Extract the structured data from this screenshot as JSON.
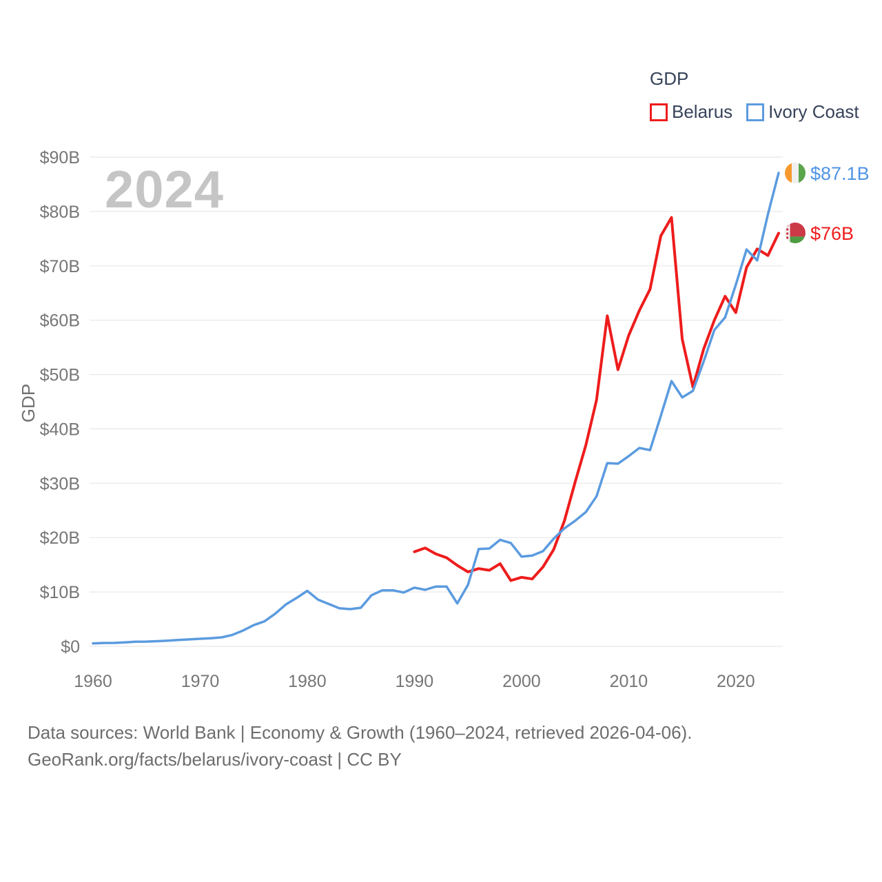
{
  "watermark": "2024",
  "legend": {
    "title": "GDP",
    "items": [
      {
        "label": "Belarus",
        "color": "#ee1c1c"
      },
      {
        "label": "Ivory Coast",
        "color": "#5b9bdf"
      }
    ]
  },
  "end_labels": [
    {
      "series": "Ivory Coast",
      "text": "$87.1B",
      "color": "#4f94e3",
      "flag_colors": [
        "#f7992d",
        "#f0f0f0",
        "#5ba54d"
      ]
    },
    {
      "series": "Belarus",
      "text": "$76B",
      "color": "#ee1c1c",
      "flag_colors": [
        "#cc3a47",
        "#4e9b43",
        "#f2f2f2"
      ]
    }
  ],
  "axes": {
    "y_label": "GDP",
    "y_ticks": [
      "$0",
      "$10B",
      "$20B",
      "$30B",
      "$40B",
      "$50B",
      "$60B",
      "$70B",
      "$80B",
      "$90B"
    ],
    "x_ticks": [
      "1960",
      "1970",
      "1980",
      "1990",
      "2000",
      "2010",
      "2020"
    ]
  },
  "footer": {
    "line1": "Data sources: World Bank | Economy & Growth (1960–2024, retrieved 2026-04-06).",
    "line2": "GeoRank.org/facts/belarus/ivory-coast | CC BY"
  },
  "chart_data": {
    "type": "line",
    "title": "GDP",
    "ylabel": "GDP",
    "ylim": [
      0,
      90
    ],
    "xlim": [
      1960,
      2024
    ],
    "grid": true,
    "legend_position": "top-right",
    "series": [
      {
        "name": "Belarus",
        "color": "#ee1c1c",
        "start_year": 1990,
        "values": [
          17.4,
          18.1,
          17.0,
          16.3,
          14.9,
          13.7,
          14.3,
          14.0,
          15.2,
          12.1,
          12.7,
          12.4,
          14.6,
          17.8,
          23.1,
          30.2,
          37.0,
          45.3,
          60.8,
          50.9,
          57.2,
          61.8,
          65.7,
          75.5,
          78.9,
          56.5,
          47.7,
          54.7,
          60.0,
          64.4,
          61.4,
          69.7,
          73.1,
          71.9,
          76.0
        ]
      },
      {
        "name": "Ivory Coast",
        "color": "#5b9bdf",
        "start_year": 1960,
        "values": [
          0.55,
          0.62,
          0.64,
          0.72,
          0.85,
          0.88,
          0.95,
          1.05,
          1.18,
          1.28,
          1.4,
          1.5,
          1.65,
          2.1,
          2.9,
          3.9,
          4.6,
          6.0,
          7.7,
          8.9,
          10.2,
          8.6,
          7.8,
          7.0,
          6.85,
          7.1,
          9.4,
          10.3,
          10.3,
          9.9,
          10.8,
          10.4,
          11.0,
          11.0,
          7.9,
          11.3,
          17.9,
          18.0,
          19.6,
          19.0,
          16.5,
          16.7,
          17.5,
          19.8,
          21.7,
          23.1,
          24.7,
          27.6,
          33.7,
          33.6,
          35.0,
          36.5,
          36.1,
          42.4,
          48.8,
          45.8,
          47.0,
          52.4,
          58.2,
          60.5,
          66.5,
          73.0,
          71.0,
          79.5,
          87.1
        ]
      }
    ]
  }
}
